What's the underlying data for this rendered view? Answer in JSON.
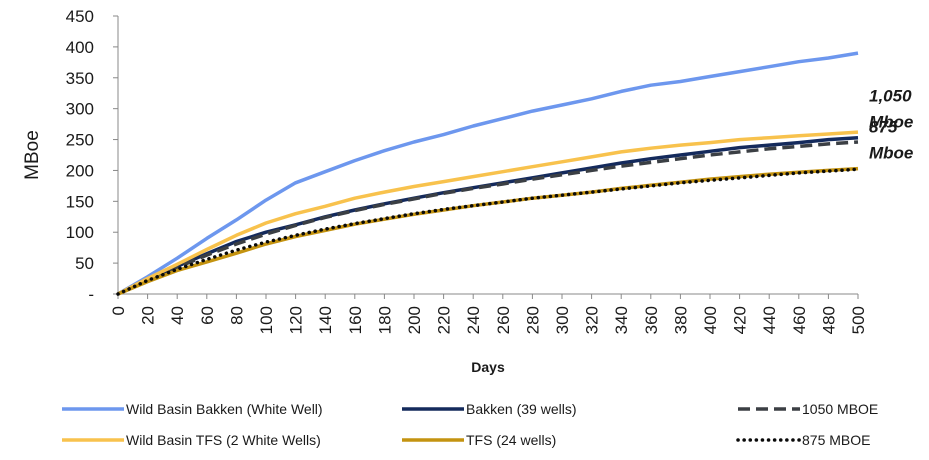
{
  "chart_data": {
    "type": "line",
    "xlabel": "Days",
    "ylabel": "MBoe",
    "xlim": [
      0,
      500
    ],
    "ylim": [
      0,
      450
    ],
    "x_ticks": [
      0,
      20,
      40,
      60,
      80,
      100,
      120,
      140,
      160,
      180,
      200,
      220,
      240,
      260,
      280,
      300,
      320,
      340,
      360,
      380,
      400,
      420,
      440,
      460,
      480,
      500
    ],
    "y_ticks": [
      {
        "value": 0,
        "label": "-"
      },
      {
        "value": 50,
        "label": "50"
      },
      {
        "value": 100,
        "label": "100"
      },
      {
        "value": 150,
        "label": "150"
      },
      {
        "value": 200,
        "label": "200"
      },
      {
        "value": 250,
        "label": "250"
      },
      {
        "value": 300,
        "label": "300"
      },
      {
        "value": 350,
        "label": "350"
      },
      {
        "value": 400,
        "label": "400"
      },
      {
        "value": 450,
        "label": "450"
      }
    ],
    "grid": false,
    "legend_position": "bottom",
    "x": [
      0,
      20,
      40,
      60,
      80,
      100,
      120,
      140,
      160,
      180,
      200,
      220,
      240,
      260,
      280,
      300,
      320,
      340,
      360,
      380,
      400,
      420,
      440,
      460,
      480,
      500
    ],
    "series": [
      {
        "name": "Wild Basin Bakken (White Well)",
        "color": "#6d97ee",
        "style": "solid",
        "values": [
          0,
          28,
          58,
          90,
          120,
          152,
          180,
          198,
          216,
          232,
          246,
          258,
          272,
          284,
          296,
          306,
          316,
          328,
          338,
          344,
          352,
          360,
          368,
          376,
          382,
          390
        ]
      },
      {
        "name": "Bakken (39 wells)",
        "color": "#142a5c",
        "style": "solid",
        "values": [
          0,
          22,
          45,
          65,
          85,
          100,
          112,
          125,
          136,
          146,
          155,
          164,
          172,
          180,
          188,
          196,
          204,
          212,
          219,
          225,
          231,
          237,
          241,
          245,
          250,
          253
        ]
      },
      {
        "name": "1050 MBOE",
        "color": "#3b3f44",
        "style": "dashed",
        "values": [
          0,
          22,
          43,
          63,
          81,
          97,
          111,
          124,
          135,
          145,
          154,
          163,
          171,
          178,
          186,
          193,
          200,
          207,
          213,
          219,
          225,
          230,
          235,
          239,
          243,
          246
        ]
      },
      {
        "name": "Wild Basin TFS (2 White Wells)",
        "color": "#f8c24d",
        "style": "solid",
        "values": [
          0,
          25,
          48,
          72,
          95,
          115,
          130,
          142,
          155,
          165,
          174,
          182,
          190,
          198,
          206,
          214,
          222,
          230,
          236,
          241,
          245,
          250,
          253,
          256,
          259,
          262
        ]
      },
      {
        "name": "TFS (24 wells)",
        "color": "#c49310",
        "style": "solid",
        "values": [
          0,
          20,
          38,
          52,
          66,
          81,
          93,
          103,
          113,
          121,
          129,
          136,
          143,
          149,
          155,
          160,
          165,
          171,
          176,
          181,
          186,
          190,
          194,
          197,
          200,
          203
        ]
      },
      {
        "name": "875 MBOE",
        "color": "#0a0a0a",
        "style": "dotted",
        "values": [
          0,
          22,
          40,
          56,
          71,
          84,
          95,
          105,
          114,
          122,
          130,
          137,
          143,
          149,
          155,
          160,
          165,
          170,
          175,
          180,
          184,
          188,
          192,
          196,
          199,
          202
        ]
      }
    ],
    "annotations": [
      {
        "line1": "1,050",
        "line2": "Mboe",
        "near_y": 250
      },
      {
        "line1": "875",
        "line2": "Mboe",
        "near_y": 200
      }
    ]
  }
}
